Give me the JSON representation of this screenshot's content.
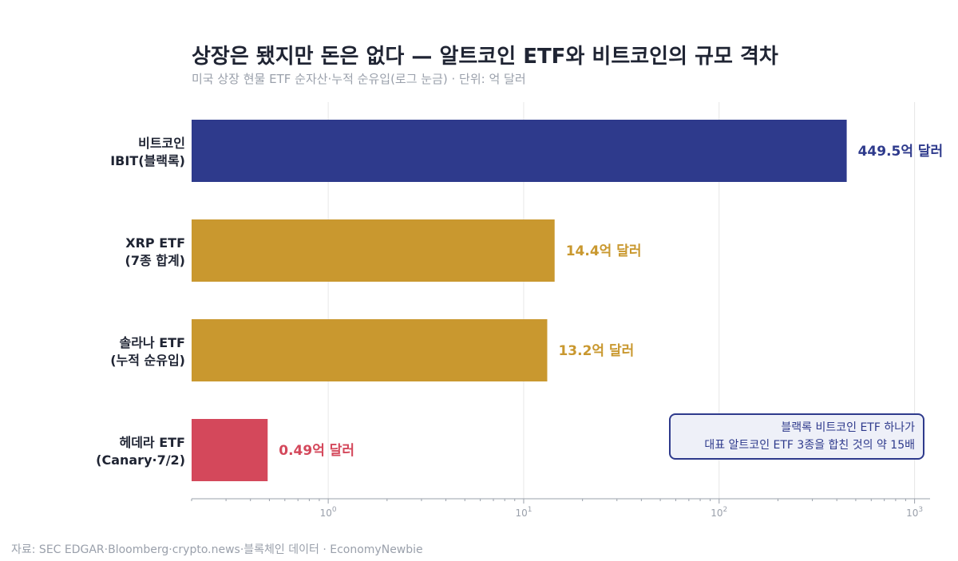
{
  "title": "상장은 됐지만 돈은 없다 — 알트코인 ETF와 비트코인의 규모 격차",
  "subtitle": "미국 상장 현물 ETF 순자산·누적 순유입(로그 눈금) · 단위: 억 달러",
  "source": "자료: SEC EDGAR·Bloomberg·crypto.news·블록체인 데이터 · EconomyNewbie",
  "annotation": {
    "line1": "블랙록 비트코인 ETF 하나가",
    "line2": "대표 알트코인 ETF 3종을 합친 것의 약 15배"
  },
  "chart_data": {
    "type": "bar",
    "orientation": "horizontal",
    "x_scale": "log",
    "xlim": [
      0.2,
      1200
    ],
    "x_ticks": [
      1,
      10,
      100,
      1000
    ],
    "x_tick_labels": [
      {
        "base": "10",
        "exp": "0"
      },
      {
        "base": "10",
        "exp": "1"
      },
      {
        "base": "10",
        "exp": "2"
      },
      {
        "base": "10",
        "exp": "3"
      }
    ],
    "grid": true,
    "categories": [
      {
        "line1": "비트코인",
        "line2": "IBIT(블랙록)"
      },
      {
        "line1": "XRP ETF",
        "line2": "(7종 합계)"
      },
      {
        "line1": "솔라나 ETF",
        "line2": "(누적 순유입)"
      },
      {
        "line1": "헤데라 ETF",
        "line2": "(Canary·7/2)"
      }
    ],
    "values": [
      449.5,
      14.4,
      13.2,
      0.49
    ],
    "value_labels": [
      "449.5억 달러",
      "14.4억 달러",
      "13.2억 달러",
      "0.49억 달러"
    ],
    "colors": [
      "#2e3a8c",
      "#c9982f",
      "#c9982f",
      "#d4485b"
    ]
  }
}
